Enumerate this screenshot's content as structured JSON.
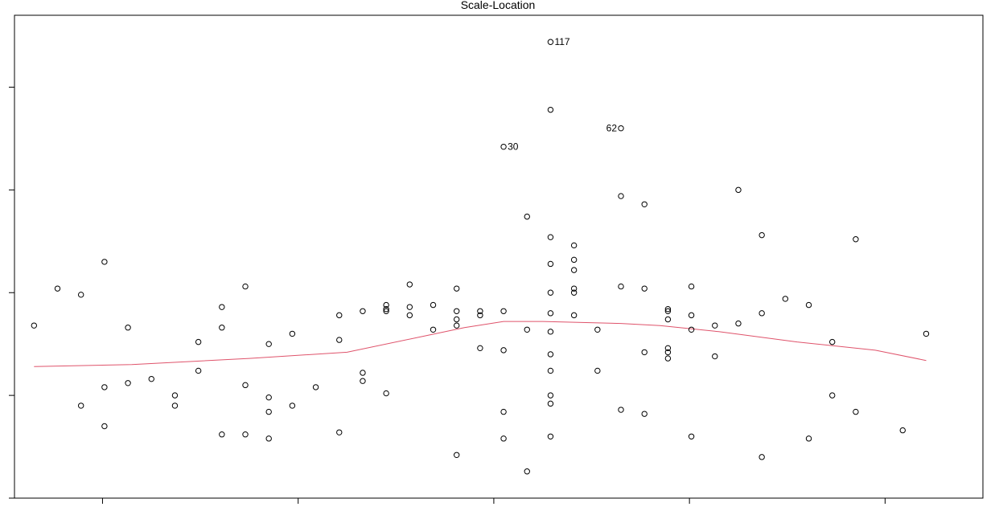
{
  "chart_data": {
    "type": "scatter",
    "title": "Scale-Location",
    "xlabel": "",
    "ylabel": "",
    "xlim": [
      -0.2,
      4.75
    ],
    "ylim": [
      0.15,
      2.5
    ],
    "x_ticks": [
      0.25,
      1.25,
      2.25,
      3.25,
      4.25
    ],
    "y_ticks": [
      0.15,
      0.65,
      1.15,
      1.65,
      2.15
    ],
    "x_tick_labels": [],
    "y_tick_labels": [],
    "grid": false,
    "series": [
      {
        "points": [
          [
            -0.1,
            0.99
          ],
          [
            0.02,
            1.17
          ],
          [
            0.14,
            1.14
          ],
          [
            0.14,
            0.6
          ],
          [
            0.26,
            1.3
          ],
          [
            0.26,
            0.69
          ],
          [
            0.26,
            0.5
          ],
          [
            0.38,
            0.98
          ],
          [
            0.38,
            0.71
          ],
          [
            0.5,
            0.73
          ],
          [
            0.62,
            0.65
          ],
          [
            0.62,
            0.6
          ],
          [
            0.74,
            0.91
          ],
          [
            0.74,
            0.77
          ],
          [
            0.86,
            1.08
          ],
          [
            0.86,
            0.98
          ],
          [
            0.86,
            0.46
          ],
          [
            0.98,
            1.18
          ],
          [
            0.98,
            0.7
          ],
          [
            0.98,
            0.46
          ],
          [
            1.1,
            0.9
          ],
          [
            1.1,
            0.64
          ],
          [
            1.1,
            0.57
          ],
          [
            1.1,
            0.44
          ],
          [
            1.22,
            0.95
          ],
          [
            1.22,
            0.6
          ],
          [
            1.34,
            0.69
          ],
          [
            1.46,
            1.04
          ],
          [
            1.46,
            0.92
          ],
          [
            1.46,
            0.47
          ],
          [
            1.58,
            1.06
          ],
          [
            1.58,
            0.76
          ],
          [
            1.58,
            0.72
          ],
          [
            1.7,
            1.09
          ],
          [
            1.7,
            1.06
          ],
          [
            1.7,
            1.07
          ],
          [
            1.7,
            0.66
          ],
          [
            1.82,
            1.19
          ],
          [
            1.82,
            1.08
          ],
          [
            1.82,
            1.04
          ],
          [
            1.94,
            1.09
          ],
          [
            1.94,
            0.97
          ],
          [
            2.06,
            1.17
          ],
          [
            2.06,
            1.06
          ],
          [
            2.06,
            1.02
          ],
          [
            2.06,
            0.99
          ],
          [
            2.06,
            0.36
          ],
          [
            2.18,
            1.06
          ],
          [
            2.18,
            1.04
          ],
          [
            2.18,
            0.88
          ],
          [
            2.3,
            1.06
          ],
          [
            2.3,
            0.87
          ],
          [
            2.3,
            0.57
          ],
          [
            2.3,
            0.44
          ],
          [
            2.42,
            1.52
          ],
          [
            2.42,
            0.97
          ],
          [
            2.42,
            0.28
          ],
          [
            2.54,
            1.42
          ],
          [
            2.54,
            1.29
          ],
          [
            2.54,
            1.05
          ],
          [
            2.54,
            2.04
          ],
          [
            2.54,
            1.15
          ],
          [
            2.54,
            0.96
          ],
          [
            2.54,
            0.85
          ],
          [
            2.54,
            0.77
          ],
          [
            2.54,
            0.65
          ],
          [
            2.54,
            0.61
          ],
          [
            2.54,
            0.45
          ],
          [
            2.66,
            1.38
          ],
          [
            2.66,
            1.31
          ],
          [
            2.66,
            1.26
          ],
          [
            2.66,
            1.17
          ],
          [
            2.66,
            1.15
          ],
          [
            2.66,
            1.04
          ],
          [
            2.78,
            0.97
          ],
          [
            2.78,
            0.77
          ],
          [
            2.9,
            1.62
          ],
          [
            2.9,
            1.18
          ],
          [
            2.9,
            0.58
          ],
          [
            3.02,
            1.58
          ],
          [
            3.02,
            1.17
          ],
          [
            3.02,
            0.86
          ],
          [
            3.02,
            0.56
          ],
          [
            3.14,
            1.07
          ],
          [
            3.14,
            1.06
          ],
          [
            3.14,
            1.02
          ],
          [
            3.14,
            0.88
          ],
          [
            3.14,
            0.86
          ],
          [
            3.14,
            0.83
          ],
          [
            3.26,
            1.18
          ],
          [
            3.26,
            1.04
          ],
          [
            3.26,
            0.97
          ],
          [
            3.26,
            0.45
          ],
          [
            3.38,
            0.99
          ],
          [
            3.38,
            0.84
          ],
          [
            3.5,
            1.65
          ],
          [
            3.5,
            1.0
          ],
          [
            3.62,
            1.43
          ],
          [
            3.62,
            1.05
          ],
          [
            3.62,
            0.35
          ],
          [
            3.74,
            1.12
          ],
          [
            3.86,
            1.09
          ],
          [
            3.86,
            0.44
          ],
          [
            3.98,
            0.91
          ],
          [
            3.98,
            0.65
          ],
          [
            4.1,
            1.41
          ],
          [
            4.1,
            0.57
          ],
          [
            4.34,
            0.48
          ],
          [
            4.46,
            0.95
          ]
        ]
      }
    ],
    "labeled_points": [
      {
        "label": "117",
        "x": 2.54,
        "y": 2.37,
        "side": "right"
      },
      {
        "label": "62",
        "x": 2.9,
        "y": 1.95,
        "side": "left"
      },
      {
        "label": "30",
        "x": 2.3,
        "y": 1.86,
        "side": "right"
      }
    ],
    "smooth_line": {
      "color": "#DF536B",
      "points": [
        [
          -0.1,
          0.79
        ],
        [
          0.4,
          0.8
        ],
        [
          1.0,
          0.83
        ],
        [
          1.5,
          0.86
        ],
        [
          1.9,
          0.94
        ],
        [
          2.1,
          0.98
        ],
        [
          2.3,
          1.01
        ],
        [
          2.5,
          1.01
        ],
        [
          2.9,
          1.0
        ],
        [
          3.1,
          0.99
        ],
        [
          3.4,
          0.96
        ],
        [
          3.8,
          0.91
        ],
        [
          4.2,
          0.87
        ],
        [
          4.46,
          0.82
        ]
      ]
    },
    "point_color": "#000000",
    "box_color": "#000000"
  }
}
